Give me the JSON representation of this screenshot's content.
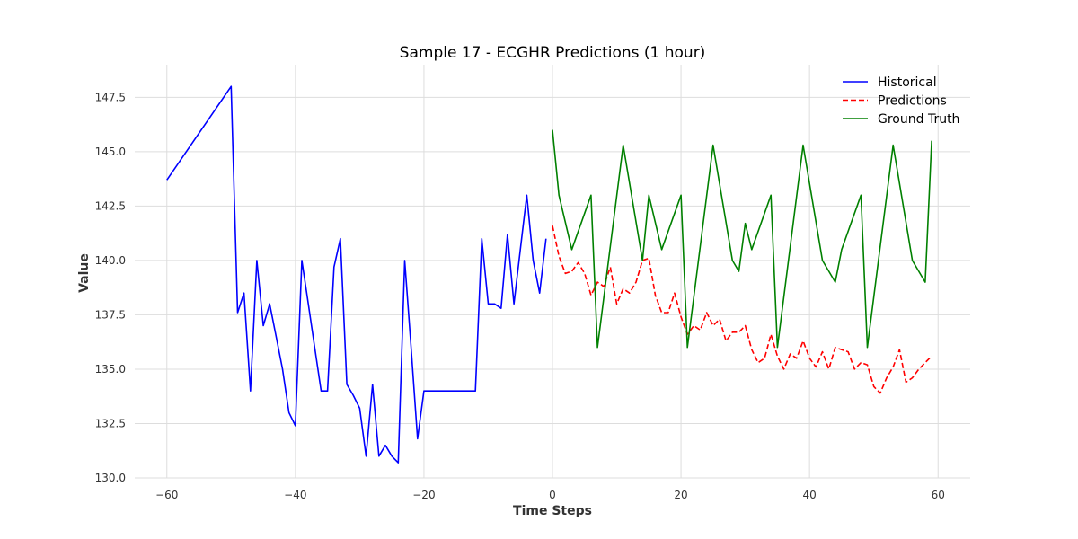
{
  "chart_data": {
    "type": "line",
    "title": "Sample 17 - ECGHR Predictions (1 hour)",
    "xlabel": "Time Steps",
    "ylabel": "Value",
    "xlim": [
      -65,
      65
    ],
    "ylim": [
      130,
      149
    ],
    "xticks": [
      -60,
      -40,
      -20,
      0,
      20,
      40,
      60
    ],
    "yticks": [
      130.0,
      132.5,
      135.0,
      137.5,
      140.0,
      142.5,
      145.0,
      147.5
    ],
    "grid": true,
    "legend_position": "top-right",
    "series": [
      {
        "name": "Historical",
        "color": "#0000ff",
        "style": "solid",
        "x": [
          -60,
          -50,
          -49,
          -48,
          -47,
          -46,
          -45,
          -44,
          -43,
          -42,
          -41,
          -40,
          -39,
          -38,
          -37,
          -36,
          -35,
          -34,
          -33,
          -32,
          -31,
          -30,
          -29,
          -28,
          -27,
          -26,
          -25,
          -24,
          -23,
          -22,
          -21,
          -20,
          -12,
          -11,
          -10,
          -9,
          -8,
          -7,
          -6,
          -5,
          -4,
          -3,
          -2,
          -1
        ],
        "y": [
          143.7,
          148.0,
          137.6,
          138.5,
          134.0,
          140.0,
          137.0,
          138.0,
          136.5,
          135.0,
          133.0,
          132.4,
          140.0,
          138.0,
          136.0,
          134.0,
          134.0,
          139.7,
          141.0,
          134.3,
          133.8,
          133.2,
          131.0,
          134.3,
          131.0,
          131.5,
          131.0,
          130.7,
          140.0,
          136.0,
          131.8,
          134.0,
          134.0,
          141.0,
          138.0,
          138.0,
          137.8,
          141.2,
          138.0,
          140.5,
          143.0,
          140.0,
          138.5,
          141.0
        ]
      },
      {
        "name": "Predictions",
        "color": "#ff0000",
        "style": "dashed",
        "x": [
          0,
          1,
          2,
          3,
          4,
          5,
          6,
          7,
          8,
          9,
          10,
          11,
          12,
          13,
          14,
          15,
          16,
          17,
          18,
          19,
          20,
          21,
          22,
          23,
          24,
          25,
          26,
          27,
          28,
          29,
          30,
          31,
          32,
          33,
          34,
          35,
          36,
          37,
          38,
          39,
          40,
          41,
          42,
          43,
          44,
          45,
          46,
          47,
          48,
          49,
          50,
          51,
          52,
          53,
          54,
          55,
          56,
          57,
          58,
          59
        ],
        "y": [
          141.6,
          140.2,
          139.4,
          139.5,
          139.9,
          139.4,
          138.4,
          139.0,
          138.8,
          139.7,
          138.0,
          138.7,
          138.5,
          139.0,
          140.0,
          140.1,
          138.4,
          137.6,
          137.6,
          138.5,
          137.4,
          136.6,
          137.0,
          136.8,
          137.6,
          137.0,
          137.3,
          136.3,
          136.7,
          136.7,
          137.0,
          135.9,
          135.3,
          135.5,
          136.6,
          135.6,
          135.0,
          135.7,
          135.5,
          136.3,
          135.5,
          135.1,
          135.8,
          135.0,
          136.0,
          135.9,
          135.8,
          135.0,
          135.3,
          135.2,
          134.2,
          133.9,
          134.6,
          135.1,
          135.9,
          134.4,
          134.6,
          135.0,
          135.3,
          135.6
        ]
      },
      {
        "name": "Ground Truth",
        "color": "#008000",
        "style": "solid",
        "x": [
          0,
          1,
          3,
          6,
          7,
          11,
          14,
          15,
          17,
          20,
          21,
          25,
          28,
          29,
          30,
          31,
          34,
          35,
          39,
          42,
          44,
          45,
          48,
          49,
          53,
          56,
          58,
          59
        ],
        "y": [
          146.0,
          143.0,
          140.5,
          143.0,
          136.0,
          145.3,
          140.0,
          143.0,
          140.5,
          143.0,
          136.0,
          145.3,
          140.0,
          139.5,
          141.7,
          140.5,
          143.0,
          136.0,
          145.3,
          140.0,
          139.0,
          140.5,
          143.0,
          136.0,
          145.3,
          140.0,
          139.0,
          145.5
        ]
      }
    ]
  }
}
